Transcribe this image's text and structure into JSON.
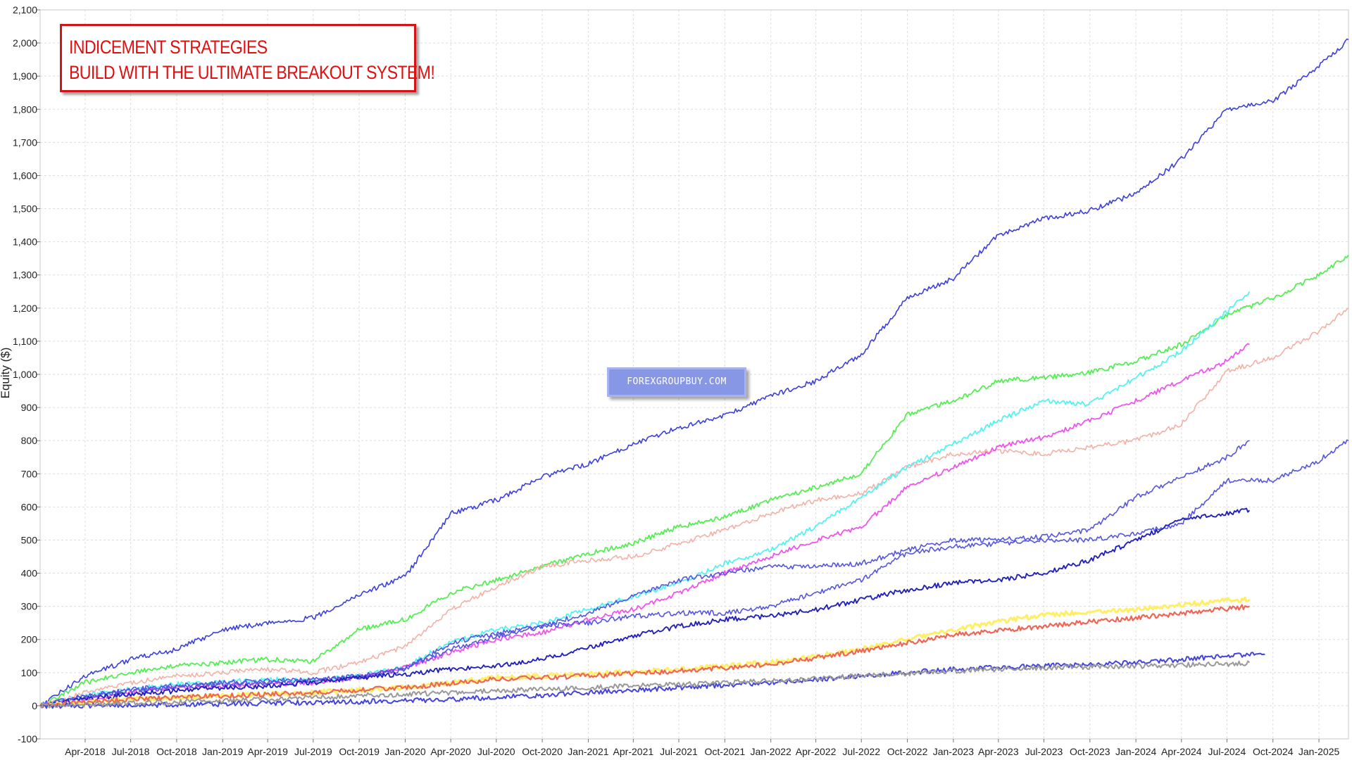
{
  "chart_data": {
    "type": "line",
    "title": "",
    "xlabel": "",
    "ylabel": "Equity ($)",
    "ylim": [
      -100,
      2100
    ],
    "y_ticks": [
      -100,
      0,
      100,
      200,
      300,
      400,
      500,
      600,
      700,
      800,
      900,
      1000,
      1100,
      1200,
      1300,
      1400,
      1500,
      1600,
      1700,
      1800,
      1900,
      2000,
      2100
    ],
    "y_tick_labels": [
      "-100",
      "0",
      "100",
      "200",
      "300",
      "400",
      "500",
      "600",
      "700",
      "800",
      "900",
      "1,000",
      "1,100",
      "1,200",
      "1,300",
      "1,400",
      "1,500",
      "1,600",
      "1,700",
      "1,800",
      "1,900",
      "2,000",
      "2,100"
    ],
    "xlim": [
      "2018-01-01",
      "2025-03-01"
    ],
    "x_ticks": [
      "2018-04-01",
      "2018-07-01",
      "2018-10-01",
      "2019-01-01",
      "2019-04-01",
      "2019-07-01",
      "2019-10-01",
      "2020-01-01",
      "2020-04-01",
      "2020-07-01",
      "2020-10-01",
      "2021-01-01",
      "2021-04-01",
      "2021-07-01",
      "2021-10-01",
      "2022-01-01",
      "2022-04-01",
      "2022-07-01",
      "2022-10-01",
      "2023-01-01",
      "2023-04-01",
      "2023-07-01",
      "2023-10-01",
      "2024-01-01",
      "2024-04-01",
      "2024-07-01",
      "2024-10-01",
      "2025-01-01"
    ],
    "x_tick_labels": [
      "Apr-2018",
      "Jul-2018",
      "Oct-2018",
      "Jan-2019",
      "Apr-2019",
      "Jul-2019",
      "Oct-2019",
      "Jan-2020",
      "Apr-2020",
      "Jul-2020",
      "Oct-2020",
      "Jan-2021",
      "Apr-2021",
      "Jul-2021",
      "Oct-2021",
      "Jan-2022",
      "Apr-2022",
      "Jul-2022",
      "Oct-2022",
      "Jan-2023",
      "Apr-2023",
      "Jul-2023",
      "Oct-2023",
      "Jan-2024",
      "Apr-2024",
      "Jul-2024",
      "Oct-2024",
      "Jan-2025"
    ],
    "grid": true,
    "legend": "none",
    "series": [
      {
        "color": "#3b3fdc",
        "width": 1.6,
        "x": [
          "2018-01-01",
          "2018-04-01",
          "2018-07-01",
          "2018-10-01",
          "2019-01-01",
          "2019-04-01",
          "2019-07-01",
          "2019-10-01",
          "2020-01-01",
          "2020-04-01",
          "2020-07-01",
          "2020-10-01",
          "2021-01-01",
          "2021-04-01",
          "2021-07-01",
          "2021-10-01",
          "2022-01-01",
          "2022-04-01",
          "2022-07-01",
          "2022-10-01",
          "2023-01-01",
          "2023-04-01",
          "2023-07-01",
          "2023-10-01",
          "2024-01-01",
          "2024-04-01",
          "2024-07-01",
          "2024-10-01",
          "2025-01-01",
          "2025-03-01"
        ],
        "y": [
          0,
          90,
          140,
          170,
          230,
          250,
          265,
          335,
          390,
          580,
          620,
          690,
          730,
          790,
          840,
          875,
          935,
          980,
          1060,
          1230,
          1290,
          1420,
          1470,
          1495,
          1545,
          1650,
          1800,
          1825,
          1930,
          2010
        ]
      },
      {
        "color": "#55ee55",
        "width": 1.8,
        "x": [
          "2018-01-01",
          "2018-04-01",
          "2018-07-01",
          "2018-10-01",
          "2019-01-01",
          "2019-04-01",
          "2019-07-01",
          "2019-10-01",
          "2020-01-01",
          "2020-04-01",
          "2020-07-01",
          "2020-10-01",
          "2021-01-01",
          "2021-04-01",
          "2021-07-01",
          "2021-10-01",
          "2022-01-01",
          "2022-04-01",
          "2022-07-01",
          "2022-10-01",
          "2023-01-01",
          "2023-04-01",
          "2023-07-01",
          "2023-10-01",
          "2024-01-01",
          "2024-04-01",
          "2024-07-01",
          "2024-10-01",
          "2025-01-01",
          "2025-03-01"
        ],
        "y": [
          0,
          70,
          100,
          120,
          130,
          140,
          135,
          230,
          260,
          340,
          380,
          420,
          460,
          490,
          540,
          570,
          620,
          660,
          700,
          880,
          920,
          980,
          990,
          1005,
          1040,
          1090,
          1180,
          1230,
          1300,
          1360
        ]
      },
      {
        "color": "#f3b0a6",
        "width": 1.6,
        "x": [
          "2018-01-01",
          "2018-04-01",
          "2018-07-01",
          "2018-10-01",
          "2019-01-01",
          "2019-04-01",
          "2019-07-01",
          "2019-10-01",
          "2020-01-01",
          "2020-04-01",
          "2020-07-01",
          "2020-10-01",
          "2021-01-01",
          "2021-04-01",
          "2021-07-01",
          "2021-10-01",
          "2022-01-01",
          "2022-04-01",
          "2022-07-01",
          "2022-10-01",
          "2023-01-01",
          "2023-04-01",
          "2023-07-01",
          "2023-10-01",
          "2024-01-01",
          "2024-04-01",
          "2024-07-01",
          "2024-10-01",
          "2025-01-01",
          "2025-03-01"
        ],
        "y": [
          0,
          40,
          70,
          90,
          100,
          110,
          100,
          130,
          180,
          290,
          360,
          420,
          440,
          450,
          490,
          530,
          580,
          620,
          640,
          720,
          760,
          770,
          760,
          780,
          800,
          850,
          1010,
          1050,
          1130,
          1200
        ]
      },
      {
        "color": "#55f2f2",
        "width": 1.8,
        "x": [
          "2018-01-01",
          "2018-04-01",
          "2018-07-01",
          "2018-10-01",
          "2019-01-01",
          "2019-04-01",
          "2019-07-01",
          "2019-10-01",
          "2020-01-01",
          "2020-04-01",
          "2020-07-01",
          "2020-10-01",
          "2021-01-01",
          "2021-04-01",
          "2021-07-01",
          "2021-10-01",
          "2022-01-01",
          "2022-04-01",
          "2022-07-01",
          "2022-10-01",
          "2023-01-01",
          "2023-04-01",
          "2023-07-01",
          "2023-10-01",
          "2024-01-01",
          "2024-04-01",
          "2024-07-01",
          "2024-08-15"
        ],
        "y": [
          0,
          30,
          50,
          65,
          70,
          80,
          75,
          90,
          120,
          190,
          230,
          250,
          290,
          330,
          370,
          430,
          470,
          540,
          630,
          720,
          790,
          860,
          920,
          910,
          990,
          1070,
          1190,
          1250
        ]
      },
      {
        "color": "#ee55ee",
        "width": 1.8,
        "x": [
          "2018-01-01",
          "2018-04-01",
          "2018-07-01",
          "2018-10-01",
          "2019-01-01",
          "2019-04-01",
          "2019-07-01",
          "2019-10-01",
          "2020-01-01",
          "2020-04-01",
          "2020-07-01",
          "2020-10-01",
          "2021-01-01",
          "2021-04-01",
          "2021-07-01",
          "2021-10-01",
          "2022-01-01",
          "2022-04-01",
          "2022-07-01",
          "2022-10-01",
          "2023-01-01",
          "2023-04-01",
          "2023-07-01",
          "2023-10-01",
          "2024-01-01",
          "2024-04-01",
          "2024-07-01",
          "2024-08-15"
        ],
        "y": [
          0,
          20,
          40,
          55,
          60,
          65,
          70,
          85,
          115,
          160,
          200,
          220,
          260,
          290,
          340,
          400,
          450,
          500,
          540,
          660,
          720,
          780,
          810,
          860,
          920,
          980,
          1040,
          1090
        ]
      },
      {
        "color": "#5555dd",
        "width": 1.6,
        "x": [
          "2018-01-01",
          "2018-04-01",
          "2018-07-01",
          "2018-10-01",
          "2019-01-01",
          "2019-04-01",
          "2019-07-01",
          "2019-10-01",
          "2020-01-01",
          "2020-04-01",
          "2020-07-01",
          "2020-10-01",
          "2021-01-01",
          "2021-04-01",
          "2021-07-01",
          "2021-10-01",
          "2022-01-01",
          "2022-04-01",
          "2022-07-01",
          "2022-10-01",
          "2023-01-01",
          "2023-04-01",
          "2023-07-01",
          "2023-10-01",
          "2024-01-01",
          "2024-04-01",
          "2024-07-01",
          "2024-08-15"
        ],
        "y": [
          0,
          30,
          50,
          60,
          70,
          75,
          80,
          85,
          110,
          190,
          220,
          240,
          280,
          330,
          380,
          400,
          420,
          420,
          430,
          470,
          500,
          500,
          510,
          530,
          630,
          690,
          750,
          800
        ]
      },
      {
        "color": "#5555e0",
        "width": 1.6,
        "x": [
          "2018-01-01",
          "2018-04-01",
          "2018-07-01",
          "2018-10-01",
          "2019-01-01",
          "2019-04-01",
          "2019-07-01",
          "2019-10-01",
          "2020-01-01",
          "2020-04-01",
          "2020-07-01",
          "2020-10-01",
          "2021-01-01",
          "2021-04-01",
          "2021-07-01",
          "2021-10-01",
          "2022-01-01",
          "2022-04-01",
          "2022-07-01",
          "2022-10-01",
          "2023-01-01",
          "2023-04-01",
          "2023-07-01",
          "2023-10-01",
          "2024-01-01",
          "2024-04-01",
          "2024-07-01",
          "2024-10-01",
          "2025-01-01",
          "2025-03-01"
        ],
        "y": [
          0,
          25,
          45,
          55,
          65,
          70,
          75,
          90,
          115,
          170,
          210,
          240,
          250,
          270,
          280,
          280,
          300,
          340,
          380,
          460,
          480,
          490,
          500,
          500,
          520,
          550,
          680,
          680,
          740,
          800
        ]
      },
      {
        "color": "#2222bb",
        "width": 1.9,
        "x": [
          "2018-01-01",
          "2018-04-01",
          "2018-07-01",
          "2018-10-01",
          "2019-01-01",
          "2019-04-01",
          "2019-07-01",
          "2019-10-01",
          "2020-01-01",
          "2020-04-01",
          "2020-07-01",
          "2020-10-01",
          "2021-01-01",
          "2021-04-01",
          "2021-07-01",
          "2021-10-01",
          "2022-01-01",
          "2022-04-01",
          "2022-07-01",
          "2022-10-01",
          "2023-01-01",
          "2023-04-01",
          "2023-07-01",
          "2023-10-01",
          "2024-01-01",
          "2024-04-01",
          "2024-07-01",
          "2024-08-15"
        ],
        "y": [
          0,
          20,
          35,
          45,
          55,
          60,
          70,
          85,
          95,
          110,
          120,
          140,
          175,
          210,
          240,
          260,
          270,
          290,
          320,
          350,
          370,
          380,
          400,
          440,
          500,
          560,
          580,
          590
        ]
      },
      {
        "color": "#ffee66",
        "width": 3,
        "x": [
          "2018-01-01",
          "2018-07-01",
          "2019-01-01",
          "2019-07-01",
          "2020-01-01",
          "2020-07-01",
          "2021-01-01",
          "2021-07-01",
          "2022-01-01",
          "2022-07-01",
          "2023-01-01",
          "2023-07-01",
          "2024-01-01",
          "2024-07-01",
          "2024-08-15"
        ],
        "y": [
          0,
          20,
          30,
          40,
          55,
          85,
          95,
          110,
          130,
          170,
          230,
          275,
          290,
          318,
          320
        ]
      },
      {
        "color": "#ee6655",
        "width": 2.2,
        "x": [
          "2018-01-01",
          "2018-07-01",
          "2019-01-01",
          "2019-07-01",
          "2020-01-01",
          "2020-07-01",
          "2021-01-01",
          "2021-07-01",
          "2022-01-01",
          "2022-07-01",
          "2023-01-01",
          "2023-07-01",
          "2024-01-01",
          "2024-07-01",
          "2024-08-15"
        ],
        "y": [
          0,
          20,
          30,
          40,
          55,
          80,
          90,
          105,
          125,
          165,
          215,
          240,
          265,
          293,
          300
        ]
      },
      {
        "color": "#4444dd",
        "width": 2,
        "x": [
          "2018-01-01",
          "2018-07-01",
          "2019-01-01",
          "2019-07-01",
          "2020-01-01",
          "2020-07-01",
          "2021-01-01",
          "2021-07-01",
          "2022-01-01",
          "2022-07-01",
          "2023-01-01",
          "2023-07-01",
          "2024-01-01",
          "2024-07-01",
          "2024-09-15"
        ],
        "y": [
          0,
          2,
          5,
          10,
          15,
          25,
          40,
          55,
          70,
          90,
          110,
          120,
          130,
          150,
          155
        ]
      },
      {
        "color": "#999999",
        "width": 2,
        "x": [
          "2018-01-01",
          "2018-07-01",
          "2019-01-01",
          "2019-07-01",
          "2020-01-01",
          "2020-07-01",
          "2021-01-01",
          "2021-07-01",
          "2022-01-01",
          "2022-07-01",
          "2023-01-01",
          "2023-07-01",
          "2024-01-01",
          "2024-07-01",
          "2024-08-15"
        ],
        "y": [
          0,
          8,
          15,
          25,
          35,
          45,
          55,
          65,
          75,
          90,
          105,
          115,
          120,
          125,
          130
        ]
      }
    ],
    "annotation": {
      "lines": [
        "INDICEMENT STRATEGIES",
        "BUILD WITH THE ULTIMATE BREAKOUT SYSTEM!"
      ]
    },
    "watermark": "FOREXGROUPBUY.COM"
  }
}
